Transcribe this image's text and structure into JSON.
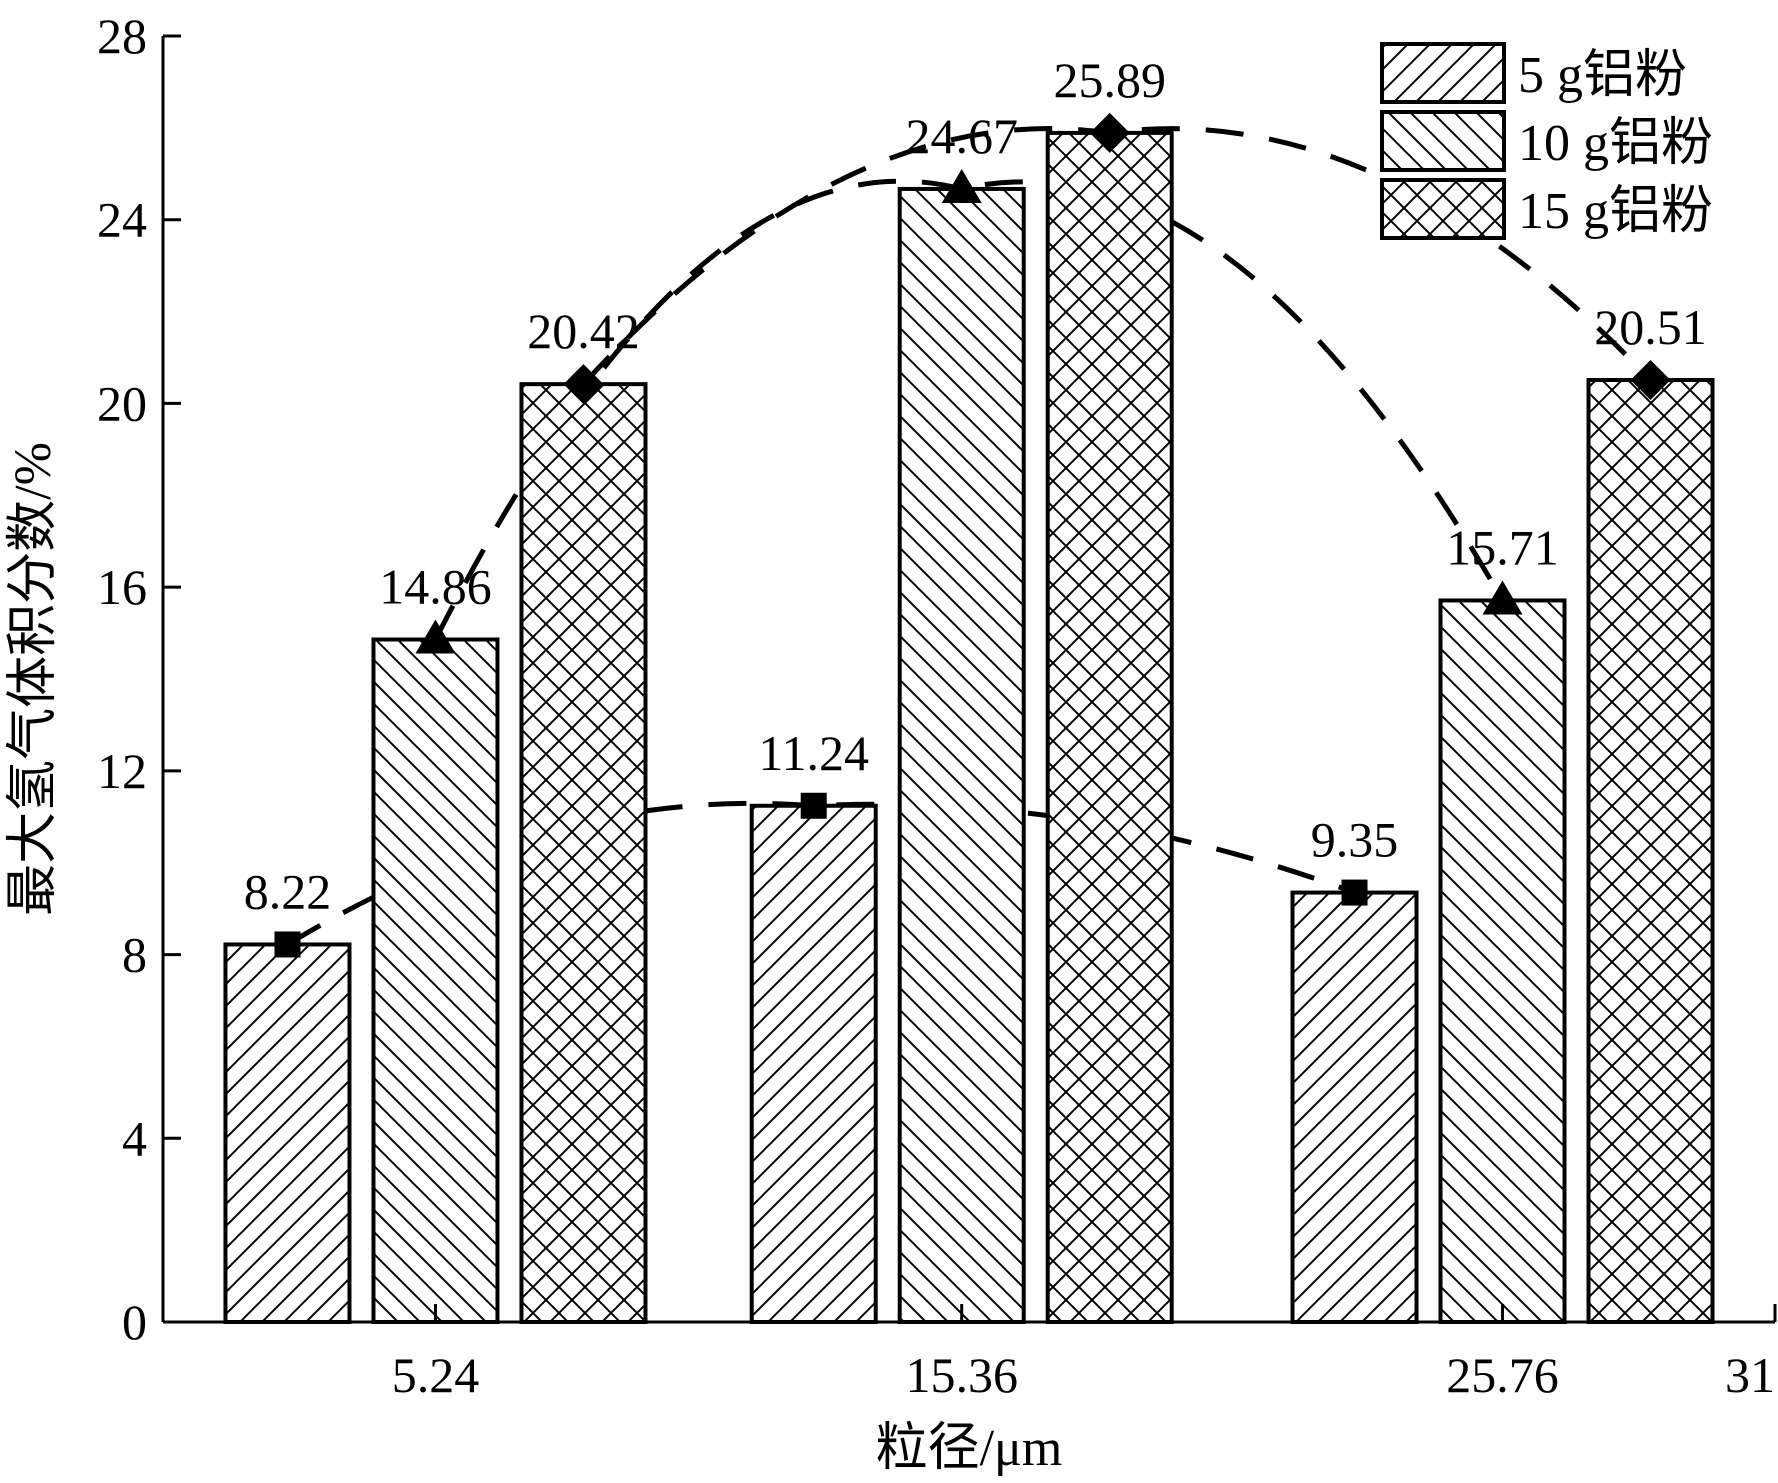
{
  "chart_data": {
    "type": "bar",
    "title": "",
    "xlabel": "粒径/μm",
    "ylabel": "最大氢气体积分数/%",
    "ylim": [
      0,
      28
    ],
    "yticks": [
      0,
      4,
      8,
      12,
      16,
      20,
      24,
      28
    ],
    "x_axis_range": [
      0,
      31
    ],
    "categories": [
      "5.24",
      "15.36",
      "25.76"
    ],
    "x_tick_labels": [
      "5.24",
      "15.36",
      "25.76",
      "31"
    ],
    "x_tick_values": [
      5.24,
      15.36,
      25.76,
      31
    ],
    "series": [
      {
        "name": "5 g铝粉",
        "values": [
          8.22,
          11.24,
          9.35
        ],
        "pattern": "diagonal-forward",
        "marker": "square"
      },
      {
        "name": "10 g铝粉",
        "values": [
          14.86,
          24.67,
          15.71
        ],
        "pattern": "diagonal-backward",
        "marker": "triangle"
      },
      {
        "name": "15 g铝粉",
        "values": [
          20.42,
          25.89,
          20.51
        ],
        "pattern": "crosshatch",
        "marker": "diamond"
      }
    ],
    "data_labels": [
      [
        "8.22",
        "11.24",
        "9.35"
      ],
      [
        "14.86",
        "24.67",
        "15.71"
      ],
      [
        "20.42",
        "25.89",
        "20.51"
      ]
    ],
    "trend_lines": "dashed",
    "grid": false,
    "legend_position": "top-right"
  }
}
